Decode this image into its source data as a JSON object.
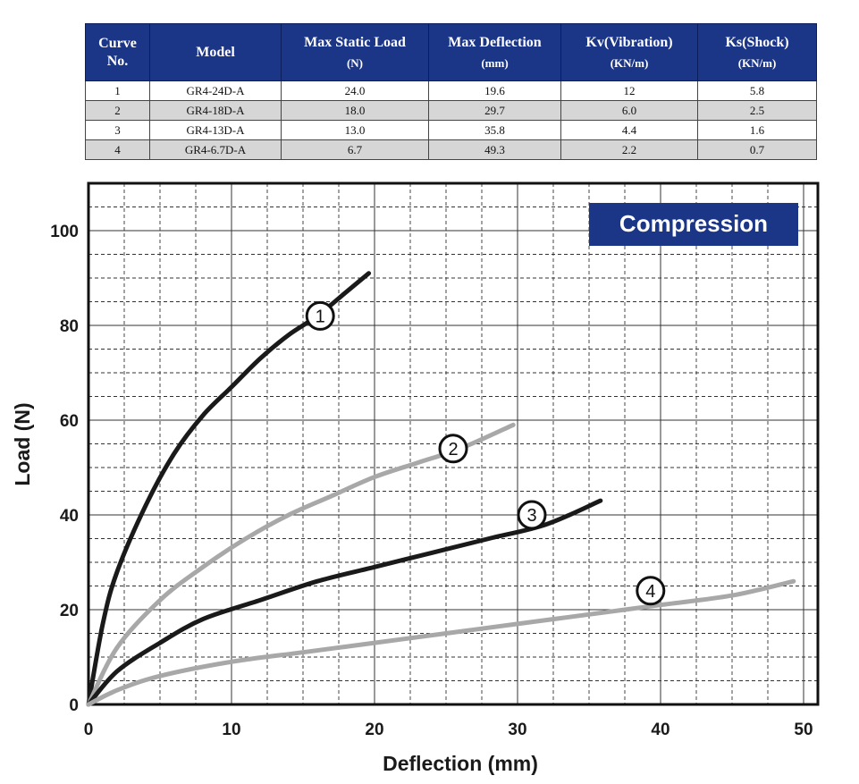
{
  "table": {
    "headers": [
      {
        "label": "Curve No.",
        "unit": ""
      },
      {
        "label": "Model",
        "unit": ""
      },
      {
        "label": "Max Static Load",
        "unit": "(N)"
      },
      {
        "label": "Max Deflection",
        "unit": "(mm)"
      },
      {
        "label": "Kv(Vibration)",
        "unit": "(KN/m)"
      },
      {
        "label": "Ks(Shock)",
        "unit": "(KN/m)"
      }
    ],
    "rows": [
      [
        "1",
        "GR4-24D-A",
        "24.0",
        "19.6",
        "12",
        "5.8"
      ],
      [
        "2",
        "GR4-18D-A",
        "18.0",
        "29.7",
        "6.0",
        "2.5"
      ],
      [
        "3",
        "GR4-13D-A",
        "13.0",
        "35.8",
        "4.4",
        "1.6"
      ],
      [
        "4",
        "GR4-6.7D-A",
        "6.7",
        "49.3",
        "2.2",
        "0.7"
      ]
    ],
    "header_color": "#1b3587",
    "shade_color": "#d6d6d6"
  },
  "chart_data": {
    "type": "line",
    "badge": "Compression",
    "badge_color": "#1b3587",
    "xlabel": "Deflection (mm)",
    "ylabel": "Load (N)",
    "xlim": [
      0,
      51
    ],
    "ylim": [
      0,
      110
    ],
    "xticks": [
      0,
      10,
      20,
      30,
      40,
      50
    ],
    "yticks": [
      0,
      20,
      40,
      60,
      80,
      100
    ],
    "grid": true,
    "series": [
      {
        "name": "1",
        "color": "#1a1a1a",
        "x": [
          0,
          1,
          2,
          4,
          6,
          8,
          10,
          12,
          14,
          16,
          18,
          19.6
        ],
        "y": [
          0,
          17,
          28,
          42,
          53,
          61,
          67,
          73,
          78,
          82,
          87,
          91
        ]
      },
      {
        "name": "2",
        "color": "#a8a8a8",
        "x": [
          0,
          2,
          5,
          8,
          11,
          14,
          17,
          20,
          23,
          26,
          29.7
        ],
        "y": [
          0,
          12,
          22,
          29,
          35,
          40,
          44,
          48,
          51,
          54,
          59
        ]
      },
      {
        "name": "3",
        "color": "#1a1a1a",
        "x": [
          0,
          2,
          5,
          8,
          12,
          16,
          20,
          24,
          28,
          32,
          35.8
        ],
        "y": [
          0,
          7,
          13,
          18,
          22,
          26,
          29,
          32,
          35,
          38,
          43
        ]
      },
      {
        "name": "4",
        "color": "#a8a8a8",
        "x": [
          0,
          2,
          5,
          10,
          15,
          20,
          25,
          30,
          35,
          40,
          45,
          49.3
        ],
        "y": [
          0,
          3,
          6,
          9,
          11,
          13,
          15,
          17,
          19,
          21,
          23,
          26
        ]
      }
    ],
    "annotations": [
      {
        "text": "1",
        "x": 16.2,
        "y": 82
      },
      {
        "text": "2",
        "x": 25.5,
        "y": 54
      },
      {
        "text": "3",
        "x": 31.0,
        "y": 40
      },
      {
        "text": "4",
        "x": 39.3,
        "y": 24
      }
    ]
  }
}
